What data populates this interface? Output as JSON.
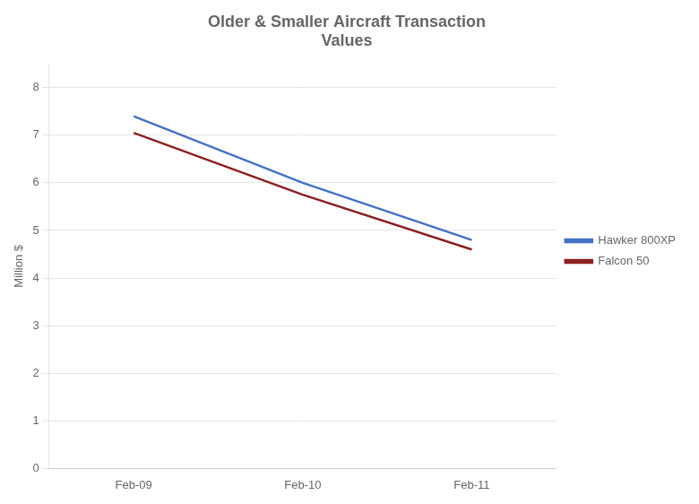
{
  "chart_data": {
    "type": "line",
    "title": "Older & Smaller Aircraft Transaction\nValues",
    "ylabel": "Million $",
    "categories": [
      "Feb-09",
      "Feb-10",
      "Feb-11"
    ],
    "series": [
      {
        "name": "Hawker 800XP",
        "color": "#4472C4",
        "values": [
          7.4,
          6.0,
          4.8
        ]
      },
      {
        "name": "Falcon 50",
        "color": "#8B2020",
        "values": [
          7.05,
          5.75,
          4.6
        ]
      }
    ],
    "ylim": [
      0,
      8.5
    ],
    "yticks": [
      0,
      1,
      2,
      3,
      4,
      5,
      6,
      7,
      8
    ],
    "grid": true,
    "legend": "right"
  }
}
